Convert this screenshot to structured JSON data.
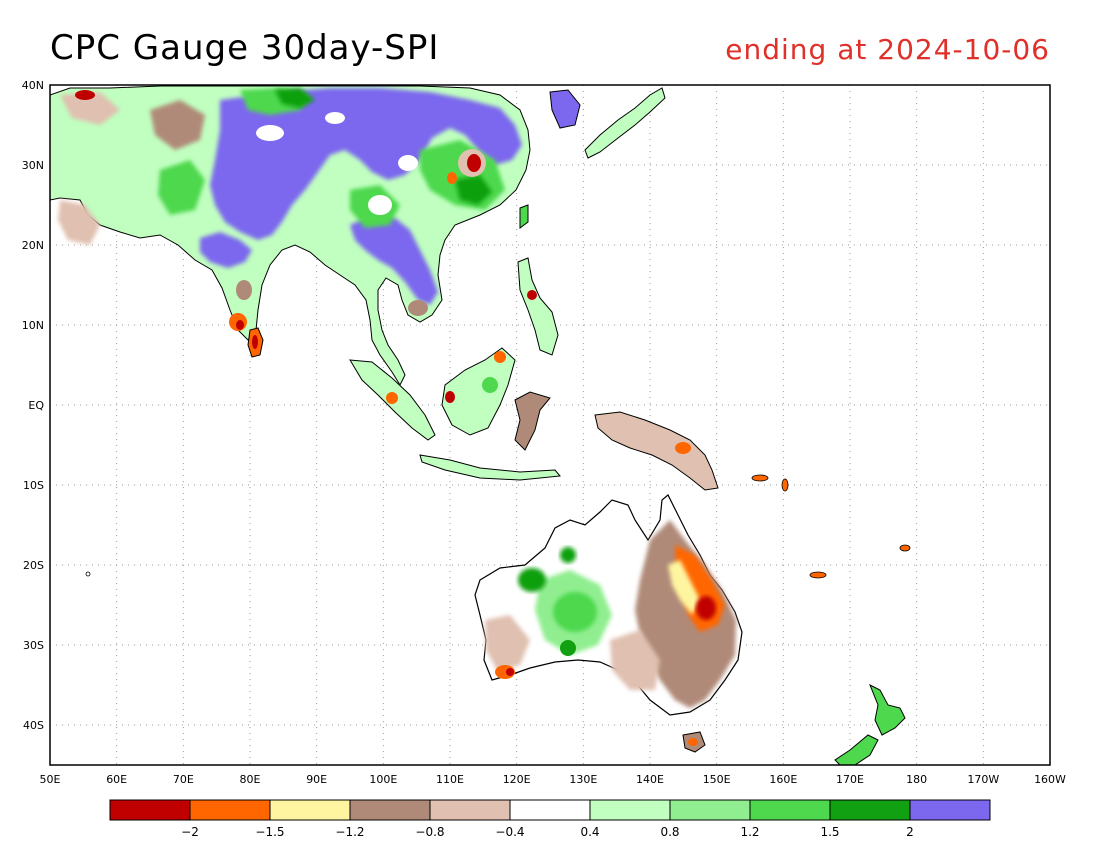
{
  "title": "CPC Gauge 30day-SPI",
  "subtitle": "ending at 2024-10-06",
  "map": {
    "lon_range": [
      50,
      200
    ],
    "lat_range": [
      -45,
      40
    ],
    "lat_ticks": [
      {
        "v": 40,
        "t": "40N"
      },
      {
        "v": 30,
        "t": "30N"
      },
      {
        "v": 20,
        "t": "20N"
      },
      {
        "v": 10,
        "t": "10N"
      },
      {
        "v": 0,
        "t": "EQ"
      },
      {
        "v": -10,
        "t": "10S"
      },
      {
        "v": -20,
        "t": "20S"
      },
      {
        "v": -30,
        "t": "30S"
      },
      {
        "v": -40,
        "t": "40S"
      }
    ],
    "lon_ticks": [
      {
        "v": 50,
        "t": "50E"
      },
      {
        "v": 60,
        "t": "60E"
      },
      {
        "v": 70,
        "t": "70E"
      },
      {
        "v": 80,
        "t": "80E"
      },
      {
        "v": 90,
        "t": "90E"
      },
      {
        "v": 100,
        "t": "100E"
      },
      {
        "v": 110,
        "t": "110E"
      },
      {
        "v": 120,
        "t": "120E"
      },
      {
        "v": 130,
        "t": "130E"
      },
      {
        "v": 140,
        "t": "140E"
      },
      {
        "v": 150,
        "t": "150E"
      },
      {
        "v": 160,
        "t": "160E"
      },
      {
        "v": 170,
        "t": "170E"
      },
      {
        "v": 180,
        "t": "180"
      },
      {
        "v": 190,
        "t": "170W"
      },
      {
        "v": 200,
        "t": "160W"
      }
    ]
  },
  "colorbar": {
    "colors": [
      "#c00000",
      "#ff6600",
      "#fff5a0",
      "#b08a78",
      "#e0c0b0",
      "#ffffff",
      "#c0ffc0",
      "#90ee90",
      "#4ed84e",
      "#11a011",
      "#7b68ee"
    ],
    "labels": [
      "-2",
      "-1.5",
      "-1.2",
      "-0.8",
      "-0.4",
      "0.4",
      "0.8",
      "1.2",
      "1.5",
      "2"
    ]
  },
  "palette": {
    "land_neutral": "#ffffff",
    "very_wet": "#7b68ee",
    "wet": "#4ed84e",
    "moderately_wet": "#90ee90",
    "slightly_wet": "#c0ffc0",
    "dry": "#b08a78",
    "slightly_dry": "#e0c0b0",
    "very_dry": "#ff6600",
    "extreme_dry": "#c00000",
    "near_dry": "#fff5a0"
  }
}
